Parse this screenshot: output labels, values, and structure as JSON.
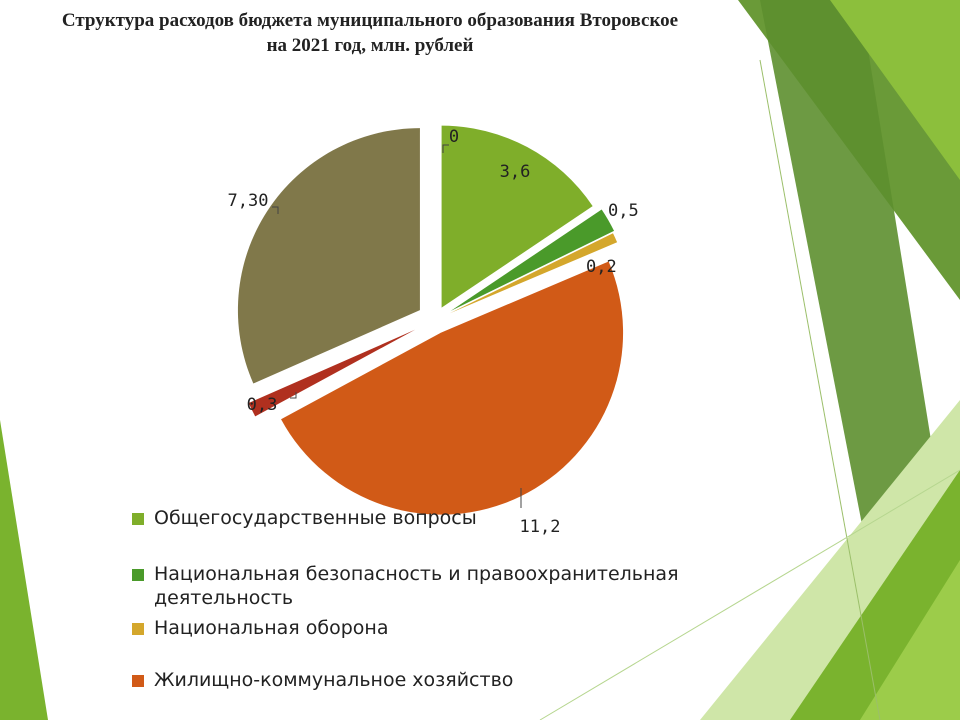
{
  "title_line1": "Структура расходов бюджета муниципального образования Второвское",
  "title_line2": "на 2021 год, млн. рублей",
  "chart_data": {
    "type": "pie",
    "title": "Структура расходов бюджета муниципального образования Второвское на 2021 год, млн. рублей",
    "slices": [
      {
        "name": "Общегосударственные вопросы",
        "value": 3.6,
        "label": "3,6",
        "color": "#7fae2a",
        "in_legend": true
      },
      {
        "name": "Национальная безопасность и правоохранительная деятельность",
        "value": 0.5,
        "label": "0,5",
        "color": "#4a9a2a",
        "in_legend": true
      },
      {
        "name": "Национальная оборона",
        "value": 0.2,
        "label": "0,2",
        "color": "#d4a72c",
        "in_legend": true
      },
      {
        "name": "Жилищно-коммунальное хозяйство",
        "value": 11.2,
        "label": "11,2",
        "color": "#d15a17",
        "in_legend": true
      },
      {
        "name": "",
        "value": 0.3,
        "label": "0,3",
        "color": "#b0301f",
        "in_legend": false
      },
      {
        "name": "",
        "value": 7.3,
        "label": "7,30",
        "color": "#80784a",
        "in_legend": false
      },
      {
        "name": "",
        "value": 0,
        "label": "0",
        "color": "#5a8a2a",
        "in_legend": false
      }
    ],
    "legend_position": "bottom"
  },
  "legend": [
    {
      "label": "Общегосударственные вопросы",
      "color": "#7fae2a"
    },
    {
      "label": "Национальная безопасность и правоохранительная деятельность",
      "color": "#4a9a2a"
    },
    {
      "label": "Национальная оборона",
      "color": "#d4a72c"
    },
    {
      "label": "Жилищно-коммунальное хозяйство",
      "color": "#d15a17"
    }
  ],
  "background_colors": [
    "#7ab32e",
    "#5d8f2f",
    "#9ccc4a",
    "#cfe6a8"
  ]
}
